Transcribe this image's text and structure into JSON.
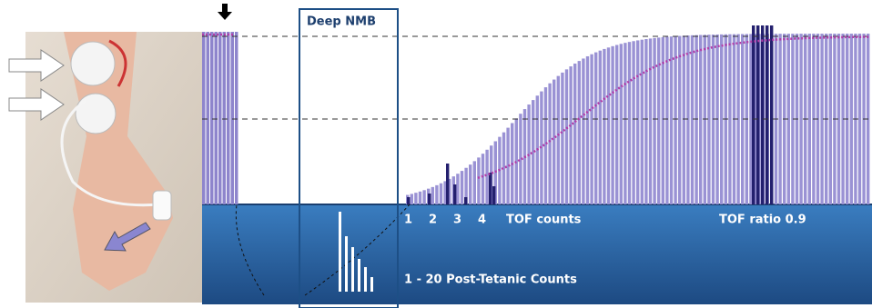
{
  "box_label": "Deep NMB",
  "tof_numbers": [
    "1",
    "2",
    "3",
    "4"
  ],
  "tof_counts_label": "TOF counts",
  "tof_ratio_label": "TOF ratio 0.9",
  "ptc_label": "1 - 20 Post-Tetanic Counts"
}
